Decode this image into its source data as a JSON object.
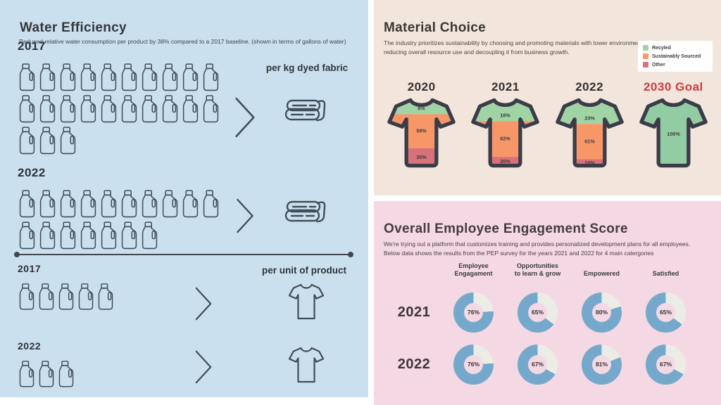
{
  "colors": {
    "water_bg": "#CBE0EF",
    "material_bg": "#F2E6DC",
    "engagement_bg": "#F4D8E3",
    "icon_stroke": "#414E58",
    "shirt_outline": "#3C3C49",
    "green": "#A1D4A5",
    "goal_green": "#92CCA3",
    "orange": "#F79768",
    "red": "#D7717A",
    "donut_fill": "#74A9CB",
    "donut_track": "#ECECE7",
    "goal_title_red": "#D4393E",
    "segment_label": "#3D3D3D"
  },
  "chart_data": [
    {
      "type": "pictograph",
      "title": "Water Efficiency",
      "subtitle": "Reduced relative water consumption per product by 38% compared to a 2017 baseline. (shown in terms of gallons of water)",
      "icon": "water-jug",
      "unit": "gallons of water",
      "groups": [
        {
          "caption": "per kg dyed fabric",
          "entries": [
            {
              "year": "2017",
              "count": 23,
              "rows": [
                10,
                10,
                3
              ]
            },
            {
              "year": "2022",
              "count": 17,
              "rows": [
                10,
                7
              ]
            }
          ]
        },
        {
          "caption": "per unit of product",
          "entries": [
            {
              "year": "2017",
              "count": 5,
              "rows": [
                5
              ]
            },
            {
              "year": "2022",
              "count": 3,
              "rows": [
                3
              ]
            }
          ]
        }
      ]
    },
    {
      "type": "bar",
      "subtype": "pictorial-stacked-100",
      "shape": "t-shirt",
      "title": "Material Choice",
      "subtitle": "The industry prioritizes sustainability by choosing and promoting materials with lower environmental impact, while also\nreducing overall resource use and decoupling it from business growth.",
      "categories": [
        "2020",
        "2021",
        "2022",
        "2030 Goal"
      ],
      "highlight_category": "2030 Goal",
      "legend_position": "top-right",
      "series": [
        {
          "name": "Recyled",
          "color": "#A1D4A5",
          "values": [
            6,
            18,
            23,
            100
          ]
        },
        {
          "name": "Sustainably Sourced",
          "color": "#F79768",
          "values": [
            59,
            62,
            61,
            0
          ]
        },
        {
          "name": "Other",
          "color": "#D7717A",
          "values": [
            35,
            20,
            16,
            0
          ]
        }
      ]
    },
    {
      "type": "pie",
      "subtype": "donut-grid",
      "title": "Overall Employee Engagement Score",
      "subtitle": "We're trying out a platform that customizes training and provides personalized development plans for all employees.\nBelow data shows the results from the PEP survey for the years 2021 and 2022 for 4 main catergories",
      "categories": [
        "Employee\nEngagament",
        "Opportunities\nto learn & grow",
        "Empowered",
        "Satisfied"
      ],
      "unit": "%",
      "series": [
        {
          "name": "2021",
          "values": [
            76,
            65,
            80,
            65
          ]
        },
        {
          "name": "2022",
          "values": [
            76,
            67,
            81,
            67
          ]
        }
      ]
    }
  ]
}
